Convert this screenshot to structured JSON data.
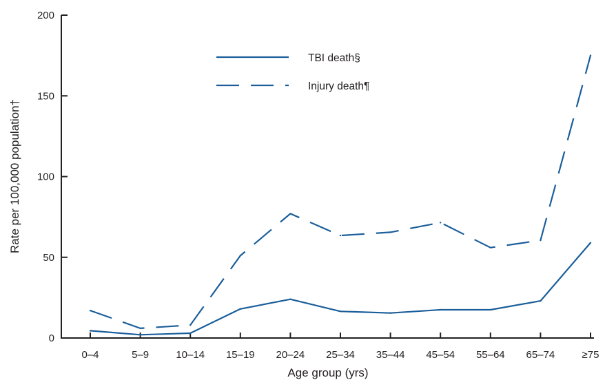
{
  "chart_data": {
    "type": "line",
    "title": "",
    "xlabel": "Age group (yrs)",
    "ylabel": "Rate per 100,000 population†",
    "ylim": [
      0,
      200
    ],
    "yticks": [
      0,
      50,
      100,
      150,
      200
    ],
    "grid": false,
    "legend_position": "top-center",
    "categories": [
      "0–4",
      "5–9",
      "10–14",
      "15–19",
      "20–24",
      "25–34",
      "35–44",
      "45–54",
      "55–64",
      "65–74",
      "≥75"
    ],
    "series": [
      {
        "name": "TBI death§",
        "style": "solid",
        "color": "#1a5e9a",
        "values": [
          4.5,
          2,
          3,
          18,
          24,
          16.5,
          15.5,
          17.5,
          17.5,
          23,
          59
        ]
      },
      {
        "name": "Injury death¶",
        "style": "dashed",
        "color": "#1a5e9a",
        "values": [
          17,
          6,
          8,
          51,
          77,
          63.5,
          65.5,
          71.5,
          56,
          60.5,
          175
        ]
      }
    ]
  }
}
